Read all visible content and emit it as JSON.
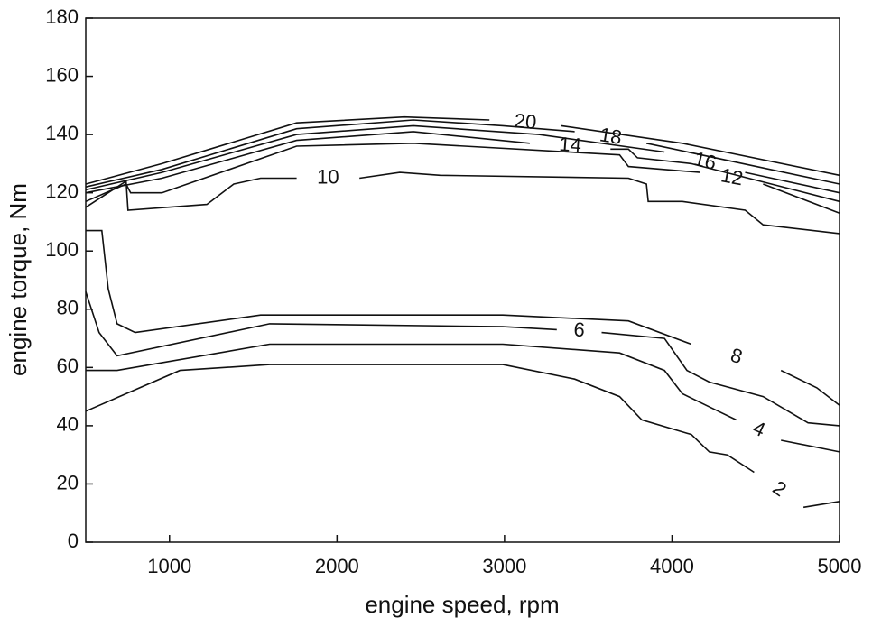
{
  "chart_data": {
    "type": "contour",
    "xlabel": "engine speed, rpm",
    "ylabel": "engine torque, Nm",
    "xlim": [
      500,
      5000
    ],
    "xticks": [
      1000,
      2000,
      3000,
      4000,
      5000
    ],
    "ylim": [
      0,
      180
    ],
    "yticks": [
      0,
      20,
      40,
      60,
      80,
      100,
      120,
      140,
      160,
      180
    ],
    "grid": false,
    "color": "#111111",
    "series": [
      {
        "name": "20",
        "x": [
          500,
          955,
          1759,
          2401,
          2910,
          null,
          3339,
          4062,
          5000
        ],
        "values": [
          123,
          130,
          144,
          146,
          145,
          null,
          143,
          137,
          126
        ]
      },
      {
        "name": "18",
        "x": [
          500,
          955,
          1759,
          2455,
          2990,
          3419,
          null,
          3847,
          5000
        ],
        "values": [
          122,
          128,
          142,
          145,
          143,
          141,
          null,
          137,
          123
        ]
      },
      {
        "name": "16",
        "x": [
          500,
          955,
          1759,
          2455,
          3205,
          3955,
          null,
          4437,
          5000
        ],
        "values": [
          121,
          127,
          140,
          143,
          140,
          134,
          null,
          127,
          120
        ]
      },
      {
        "name": "14",
        "x": [
          500,
          955,
          1759,
          2455,
          3151,
          null,
          3633,
          3740,
          3794,
          4115,
          5000
        ],
        "values": [
          120,
          125,
          138,
          141,
          137,
          null,
          135,
          135,
          132,
          130,
          117
        ]
      },
      {
        "name": "12",
        "x": [
          500,
          741,
          768,
          955,
          1759,
          2455,
          3687,
          3740,
          4169,
          null,
          4544,
          5000
        ],
        "values": [
          117,
          123,
          120,
          120,
          136,
          137,
          133,
          129,
          127,
          null,
          123,
          113
        ]
      },
      {
        "name": "10",
        "x": [
          500,
          741,
          752,
          1223,
          1384,
          1544,
          1759,
          null,
          2134,
          2375,
          2616,
          3740,
          3847,
          3858,
          4062,
          4437,
          4544,
          5000
        ],
        "values": [
          115,
          124,
          114,
          116,
          123,
          125,
          125,
          null,
          125,
          127,
          126,
          125,
          123,
          117,
          117,
          114,
          109,
          106
        ]
      },
      {
        "name": "8",
        "x": [
          500,
          596,
          634,
          687,
          795,
          1544,
          2990,
          3740,
          4115,
          null,
          4651,
          4865,
          5000
        ],
        "values": [
          107,
          107,
          87,
          75,
          72,
          78,
          78,
          76,
          68,
          null,
          59,
          53,
          47
        ]
      },
      {
        "name": "6",
        "x": [
          500,
          580,
          687,
          1598,
          2990,
          3312,
          null,
          3580,
          3955,
          4089,
          4223,
          4544,
          4812,
          5000
        ],
        "values": [
          86,
          72,
          64,
          75,
          74,
          73,
          null,
          72,
          70,
          59,
          55,
          50,
          41,
          40
        ]
      },
      {
        "name": "4",
        "x": [
          500,
          687,
          1598,
          2990,
          3687,
          3955,
          4062,
          4276,
          4383,
          null,
          4651,
          5000
        ],
        "values": [
          59,
          59,
          68,
          68,
          65,
          59,
          51,
          45,
          42,
          null,
          35,
          31
        ]
      },
      {
        "name": "2",
        "x": [
          500,
          1062,
          1598,
          2990,
          3419,
          3687,
          3820,
          4115,
          4223,
          4330,
          4490,
          null,
          4785,
          5000
        ],
        "values": [
          45,
          59,
          61,
          61,
          56,
          50,
          42,
          37,
          31,
          30,
          24,
          null,
          12,
          14
        ]
      }
    ]
  }
}
